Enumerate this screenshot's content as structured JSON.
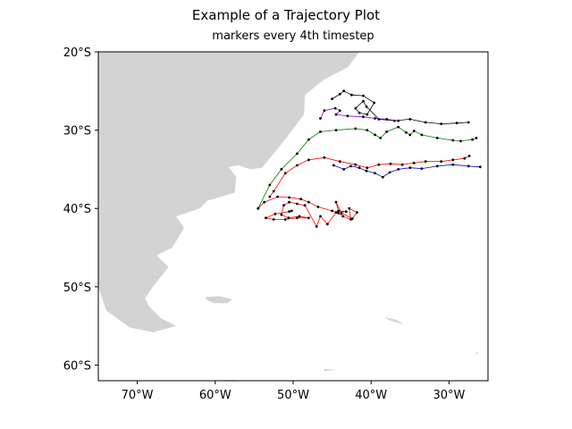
{
  "colors": {
    "land": "#d3d3d3",
    "marker": "#000000",
    "frame": "#000000"
  },
  "chart_data": {
    "type": "line",
    "title": "Example of a Trajectory Plot",
    "subtitle": "markers every 4th timestep",
    "xlabel": "",
    "ylabel": "",
    "xlim": [
      -75,
      -25
    ],
    "ylim": [
      -62,
      -20
    ],
    "xticks": [
      {
        "value": -70,
        "label": "70°W"
      },
      {
        "value": -60,
        "label": "60°W"
      },
      {
        "value": -50,
        "label": "50°W"
      },
      {
        "value": -40,
        "label": "40°W"
      },
      {
        "value": -30,
        "label": "30°W"
      }
    ],
    "yticks": [
      {
        "value": -20,
        "label": "20°S"
      },
      {
        "value": -30,
        "label": "30°S"
      },
      {
        "value": -40,
        "label": "40°S"
      },
      {
        "value": -50,
        "label": "50°S"
      },
      {
        "value": -60,
        "label": "60°S"
      }
    ],
    "grid": false,
    "land": [
      {
        "name": "south-america",
        "points": [
          [
            -70,
            -20
          ],
          [
            -60,
            -20
          ],
          [
            -52,
            -20
          ],
          [
            -45,
            -20
          ],
          [
            -41.5,
            -20
          ],
          [
            -43,
            -22
          ],
          [
            -46,
            -23.5
          ],
          [
            -48.5,
            -25.5
          ],
          [
            -48.6,
            -28
          ],
          [
            -50.5,
            -30.5
          ],
          [
            -52.5,
            -33
          ],
          [
            -54,
            -34.8
          ],
          [
            -55.5,
            -35
          ],
          [
            -57,
            -34.5
          ],
          [
            -58.3,
            -34.7
          ],
          [
            -57.3,
            -36
          ],
          [
            -57.5,
            -38
          ],
          [
            -61,
            -39
          ],
          [
            -62,
            -40
          ],
          [
            -65,
            -41
          ],
          [
            -64,
            -42.5
          ],
          [
            -65.5,
            -45
          ],
          [
            -67.5,
            -46
          ],
          [
            -66,
            -47.5
          ],
          [
            -68,
            -50
          ],
          [
            -69,
            -51.5
          ],
          [
            -68.5,
            -52.5
          ],
          [
            -67,
            -54
          ],
          [
            -65,
            -55
          ],
          [
            -68,
            -55.8
          ],
          [
            -71,
            -55.2
          ],
          [
            -74,
            -53
          ],
          [
            -75,
            -50
          ],
          [
            -75,
            -20
          ]
        ]
      },
      {
        "name": "falkland-islands",
        "points": [
          [
            -61.2,
            -51.3
          ],
          [
            -59.5,
            -51.2
          ],
          [
            -57.8,
            -51.6
          ],
          [
            -58.5,
            -52.1
          ],
          [
            -60.2,
            -52.1
          ],
          [
            -61.2,
            -51.6
          ]
        ]
      },
      {
        "name": "south-georgia",
        "points": [
          [
            -38.2,
            -53.9
          ],
          [
            -36.8,
            -54.2
          ],
          [
            -35.8,
            -54.8
          ],
          [
            -36.6,
            -54.6
          ],
          [
            -37.8,
            -54.2
          ]
        ]
      },
      {
        "name": "south-orkney-islands",
        "points": [
          [
            -46,
            -60.5
          ],
          [
            -44.5,
            -60.6
          ],
          [
            -46,
            -60.8
          ]
        ]
      },
      {
        "name": "south-shetland-islands",
        "points": [
          [
            -59,
            -61.9
          ],
          [
            -57,
            -61.9
          ],
          [
            -58,
            -62.1
          ]
        ]
      },
      {
        "name": "south-sandwich-islands",
        "points": [
          [
            -26.5,
            -58.4
          ],
          [
            -26.3,
            -58.4
          ],
          [
            -26.3,
            -58.6
          ],
          [
            -26.5,
            -58.6
          ]
        ]
      }
    ],
    "series": [
      {
        "color": "#000000",
        "markers": true,
        "points": [
          [
            -45,
            -26
          ],
          [
            -44,
            -25.4
          ],
          [
            -43.5,
            -25
          ],
          [
            -42.5,
            -25.5
          ],
          [
            -41,
            -25.6
          ],
          [
            -39.6,
            -26.5
          ],
          [
            -40.5,
            -28
          ],
          [
            -41.5,
            -27.8
          ],
          [
            -42,
            -27.2
          ],
          [
            -41,
            -26.3
          ],
          [
            -40.6,
            -27
          ],
          [
            -39,
            -28.6
          ],
          [
            -37,
            -28.8
          ],
          [
            -35,
            -28.6
          ],
          [
            -33,
            -29
          ],
          [
            -31,
            -29.2
          ],
          [
            -29,
            -29.1
          ],
          [
            -27.5,
            -29
          ]
        ]
      },
      {
        "color": "#9900cc",
        "markers": true,
        "points": [
          [
            -46.5,
            -28.5
          ],
          [
            -46,
            -27.5
          ],
          [
            -44.6,
            -27.2
          ],
          [
            -44,
            -27.5
          ],
          [
            -44.5,
            -28
          ],
          [
            -43,
            -28.2
          ],
          [
            -41,
            -28.3
          ],
          [
            -39.5,
            -28.5
          ],
          [
            -38,
            -28.6
          ],
          [
            -36.5,
            -28.8
          ]
        ]
      },
      {
        "color": "#008000",
        "markers": true,
        "points": [
          [
            -54.5,
            -40
          ],
          [
            -53,
            -37
          ],
          [
            -51.5,
            -35
          ],
          [
            -49.5,
            -33
          ],
          [
            -48,
            -31.2
          ],
          [
            -46.5,
            -30.2
          ],
          [
            -44.5,
            -30
          ],
          [
            -42,
            -29.8
          ],
          [
            -40.5,
            -30
          ],
          [
            -39.5,
            -30.6
          ],
          [
            -38.8,
            -31
          ],
          [
            -38,
            -30.2
          ],
          [
            -36.5,
            -29.6
          ],
          [
            -35.5,
            -30.3
          ],
          [
            -35,
            -30.6
          ],
          [
            -34.5,
            -30.1
          ],
          [
            -33.5,
            -30.6
          ],
          [
            -31.5,
            -31
          ],
          [
            -29.5,
            -31.3
          ],
          [
            -28.5,
            -31.4
          ],
          [
            -27,
            -31.2
          ],
          [
            -26.5,
            -31
          ]
        ]
      },
      {
        "color": "#ff0000",
        "markers": true,
        "points": [
          [
            -53,
            -38.5
          ],
          [
            -52.5,
            -37.8
          ],
          [
            -51,
            -35.5
          ],
          [
            -49.5,
            -34.5
          ],
          [
            -48,
            -33.8
          ],
          [
            -46,
            -33.5
          ],
          [
            -44,
            -34
          ],
          [
            -42,
            -34.4
          ],
          [
            -40.5,
            -34.8
          ],
          [
            -39,
            -34.4
          ],
          [
            -37.5,
            -34.3
          ],
          [
            -36,
            -34.4
          ],
          [
            -34.5,
            -34.2
          ],
          [
            -33,
            -34
          ],
          [
            -31,
            -34
          ],
          [
            -29.5,
            -33.8
          ],
          [
            -28,
            -33.6
          ],
          [
            -27.4,
            -33.3
          ]
        ]
      },
      {
        "color": "#0000cc",
        "markers": true,
        "points": [
          [
            -44.8,
            -34.5
          ],
          [
            -43.5,
            -35
          ],
          [
            -42.6,
            -34.6
          ],
          [
            -41.5,
            -34.8
          ],
          [
            -40.6,
            -35.2
          ],
          [
            -39.5,
            -35.5
          ],
          [
            -38.5,
            -36
          ],
          [
            -37.6,
            -35.4
          ],
          [
            -36.5,
            -35
          ],
          [
            -35,
            -34.8
          ],
          [
            -33.5,
            -34.9
          ],
          [
            -31.5,
            -34.6
          ],
          [
            -29.5,
            -34.4
          ],
          [
            -27.5,
            -34.6
          ],
          [
            -26,
            -34.7
          ]
        ]
      },
      {
        "color": "#ff0000",
        "markers": true,
        "points": [
          [
            -54.5,
            -40
          ],
          [
            -53.7,
            -39.2
          ],
          [
            -52,
            -38.5
          ],
          [
            -50.5,
            -38.6
          ],
          [
            -49,
            -38.8
          ],
          [
            -48,
            -39.2
          ],
          [
            -46.8,
            -39.8
          ],
          [
            -45,
            -40.3
          ],
          [
            -44.2,
            -40.6
          ],
          [
            -43.6,
            -41
          ],
          [
            -42.6,
            -41.4
          ],
          [
            -42.8,
            -40
          ],
          [
            -41.8,
            -40.5
          ],
          [
            -42.4,
            -41.3
          ],
          [
            -43.8,
            -40.6
          ],
          [
            -44.5,
            -39.2
          ],
          [
            -44.2,
            -40.3
          ],
          [
            -43.2,
            -40.4
          ],
          [
            -44.5,
            -40.5
          ],
          [
            -45.6,
            -42
          ],
          [
            -46.5,
            -41
          ],
          [
            -47,
            -42.3
          ],
          [
            -48.5,
            -39.6
          ],
          [
            -49.5,
            -39.4
          ],
          [
            -50.5,
            -39.2
          ],
          [
            -51.2,
            -39.6
          ],
          [
            -51.5,
            -40.8
          ],
          [
            -50.6,
            -41.2
          ],
          [
            -49.2,
            -41
          ],
          [
            -48,
            -41.2
          ],
          [
            -49.5,
            -41.2
          ],
          [
            -51,
            -41.4
          ],
          [
            -52.5,
            -41.4
          ],
          [
            -53.5,
            -41.2
          ],
          [
            -52.3,
            -40.7
          ],
          [
            -50.5,
            -40.4
          ],
          [
            -50.2,
            -40.3
          ]
        ]
      }
    ]
  }
}
